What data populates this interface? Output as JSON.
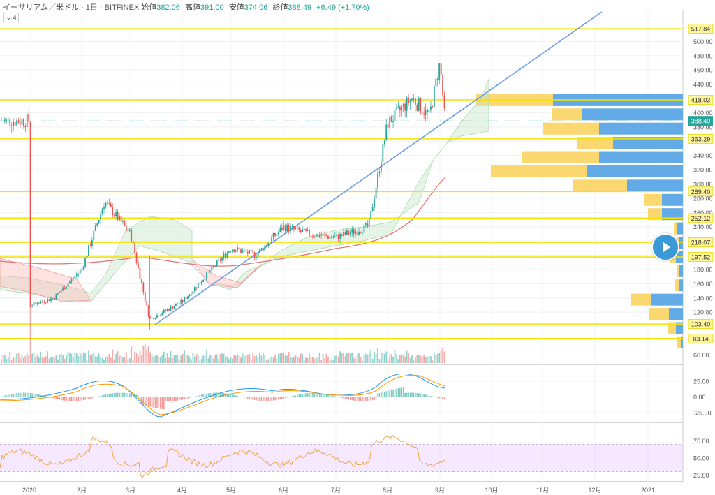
{
  "header": {
    "symbol": "イーサリアム／米ドル · 1日 · BITFINEX",
    "open_label": "始値",
    "open": "382.06",
    "high_label": "高値",
    "high": "391.00",
    "low_label": "安値",
    "low": "374.06",
    "close_label": "終値",
    "close": "388.49",
    "change": "+6.49 (+1.70%)",
    "indicator_toggle": "4"
  },
  "colors": {
    "up": "#26a69a",
    "down": "#ef5350",
    "level": "#f5e400",
    "trend": "#6b9be8",
    "ma": "#e57373",
    "rsi": "#f0a64a",
    "macd": "#2196f3"
  },
  "chart_data": [
    {
      "type": "line",
      "title": "",
      "x_ticks": [
        "2020",
        "2月",
        "3月",
        "4月",
        "5月",
        "6月",
        "7月",
        "8月",
        "9月",
        "10月",
        "11月",
        "12月",
        "2021"
      ],
      "y_ticks": [
        60,
        80,
        100,
        120,
        140,
        160,
        180,
        200,
        220,
        240,
        260,
        280,
        300,
        320,
        340,
        360,
        380,
        400,
        420,
        440,
        460,
        480,
        500
      ],
      "ylim": [
        50,
        525
      ],
      "horizontal_levels": [
        517.84,
        418.03,
        363.29,
        289.4,
        252.12,
        218.07,
        197.52,
        103.4,
        83.14
      ],
      "price_label": 388.49,
      "price_series": [
        {
          "date": "2020-01-01",
          "close": 130
        },
        {
          "date": "2020-01-15",
          "close": 140
        },
        {
          "date": "2020-02-01",
          "close": 180
        },
        {
          "date": "2020-02-15",
          "close": 275
        },
        {
          "date": "2020-03-01",
          "close": 230
        },
        {
          "date": "2020-03-12",
          "close": 110
        },
        {
          "date": "2020-04-01",
          "close": 135
        },
        {
          "date": "2020-04-15",
          "close": 170
        },
        {
          "date": "2020-05-01",
          "close": 210
        },
        {
          "date": "2020-05-15",
          "close": 200
        },
        {
          "date": "2020-06-01",
          "close": 240
        },
        {
          "date": "2020-06-15",
          "close": 230
        },
        {
          "date": "2020-07-01",
          "close": 225
        },
        {
          "date": "2020-07-20",
          "close": 240
        },
        {
          "date": "2020-08-01",
          "close": 385
        },
        {
          "date": "2020-08-15",
          "close": 420
        },
        {
          "date": "2020-08-25",
          "close": 395
        },
        {
          "date": "2020-09-01",
          "close": 470
        },
        {
          "date": "2020-09-04",
          "close": 388.49
        }
      ]
    },
    {
      "type": "line",
      "title": "",
      "y_ticks": [
        25,
        0,
        -25
      ],
      "ylim": [
        -38,
        38
      ]
    },
    {
      "type": "line",
      "title": "",
      "y_ticks": [
        75,
        50,
        25
      ],
      "ylim": [
        18,
        92
      ]
    }
  ]
}
